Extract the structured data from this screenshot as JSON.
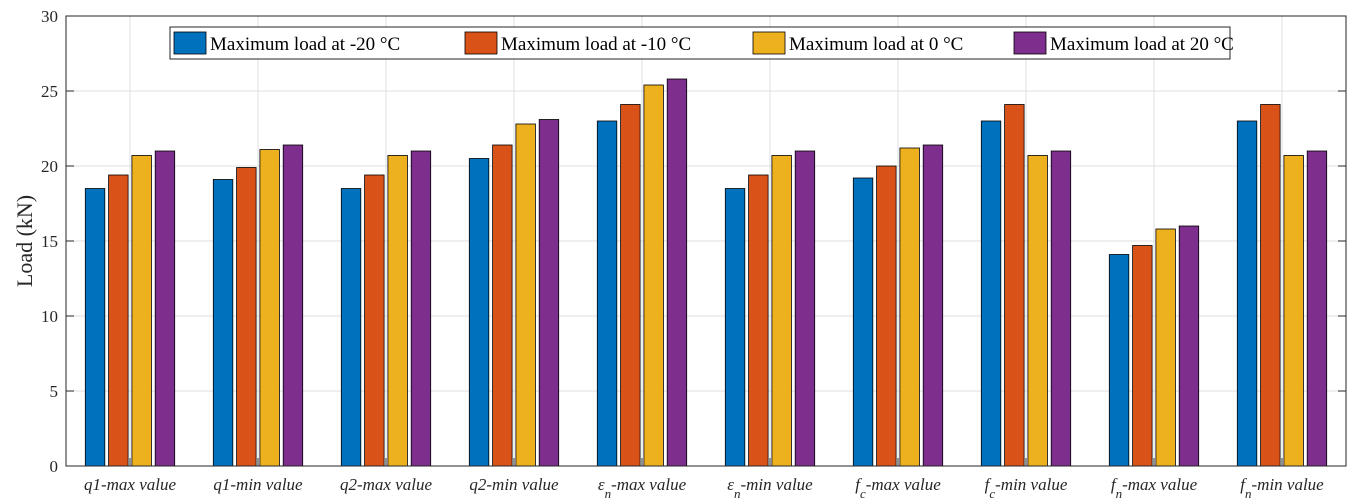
{
  "chart_data": {
    "type": "bar",
    "title": "",
    "xlabel": "",
    "ylabel": "Load (kN)",
    "ylim": [
      0,
      30
    ],
    "yticks": [
      "0",
      "5",
      "10",
      "15",
      "20",
      "25",
      "30"
    ],
    "grid": true,
    "legend_position": "top-center",
    "categories": [
      {
        "main": "q1-max value",
        "sub": ""
      },
      {
        "main": "q1-min value",
        "sub": ""
      },
      {
        "main": "q2-max value",
        "sub": ""
      },
      {
        "main": "q2-min value",
        "sub": ""
      },
      {
        "main": "ε",
        "sub": "n",
        "suffix": "-max value"
      },
      {
        "main": "ε",
        "sub": "n",
        "suffix": "-min value"
      },
      {
        "main": "f",
        "sub": "c",
        "suffix": "-max value"
      },
      {
        "main": "f",
        "sub": "c",
        "suffix": "-min value"
      },
      {
        "main": "f",
        "sub": "n",
        "suffix": "-max value"
      },
      {
        "main": "f",
        "sub": "n",
        "suffix": "-min value"
      }
    ],
    "series": [
      {
        "name": "Maximum load at -20 °C",
        "color": "#0072BD",
        "values": [
          18.5,
          19.1,
          18.5,
          20.5,
          23.0,
          18.5,
          19.2,
          23.0,
          14.1,
          23.0
        ]
      },
      {
        "name": "Maximum load at -10 °C",
        "color": "#D95319",
        "values": [
          19.4,
          19.9,
          19.4,
          21.4,
          24.1,
          19.4,
          20.0,
          24.1,
          14.7,
          24.1
        ]
      },
      {
        "name": "Maximum load at 0 °C",
        "color": "#EDB120",
        "values": [
          20.7,
          21.1,
          20.7,
          22.8,
          25.4,
          20.7,
          21.2,
          20.7,
          15.8,
          20.7
        ]
      },
      {
        "name": "Maximum load at  20 °C",
        "color": "#7E2F8E",
        "values": [
          21.0,
          21.4,
          21.0,
          23.1,
          25.8,
          21.0,
          21.4,
          21.0,
          16.0,
          21.0
        ]
      }
    ]
  }
}
